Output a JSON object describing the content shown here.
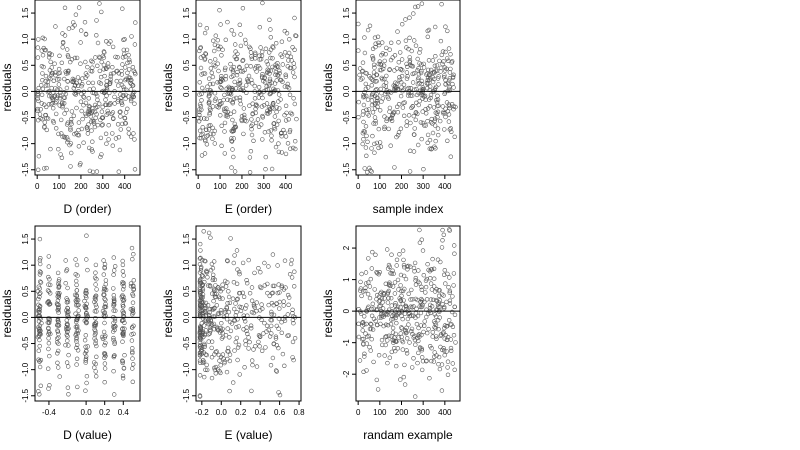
{
  "chart_data": [
    {
      "type": "scatter",
      "xlabel": "D (order)",
      "ylabel": "residuals",
      "xlim": [
        -10,
        470
      ],
      "ylim": [
        -1.6,
        1.75
      ],
      "x_ticks": [
        0,
        100,
        200,
        300,
        400
      ],
      "x_tick_labels": [
        "0",
        "100",
        "200",
        "300",
        "400"
      ],
      "y_ticks": [
        -1.5,
        -1.0,
        -0.5,
        0.0,
        0.5,
        1.0,
        1.5
      ],
      "y_tick_labels": [
        "-1.5",
        "-1.0",
        "-0.5",
        "0.0",
        "0.5",
        "1.0",
        "1.5"
      ],
      "reference_line_y": 0,
      "point_count": 450,
      "x_distribution": "uniform",
      "x_range": [
        0,
        450
      ]
    },
    {
      "type": "scatter",
      "xlabel": "E (order)",
      "ylabel": "residuals",
      "xlim": [
        -10,
        470
      ],
      "ylim": [
        -1.6,
        1.75
      ],
      "x_ticks": [
        0,
        100,
        200,
        300,
        400
      ],
      "x_tick_labels": [
        "0",
        "100",
        "200",
        "300",
        "400"
      ],
      "y_ticks": [
        -1.5,
        -1.0,
        -0.5,
        0.0,
        0.5,
        1.0,
        1.5
      ],
      "y_tick_labels": [
        "-1.5",
        "-1.0",
        "-0.5",
        "0.0",
        "0.5",
        "1.0",
        "1.5"
      ],
      "reference_line_y": 0,
      "point_count": 450,
      "x_distribution": "uniform",
      "x_range": [
        0,
        450
      ]
    },
    {
      "type": "scatter",
      "xlabel": "sample index",
      "ylabel": "residuals",
      "xlim": [
        -10,
        470
      ],
      "ylim": [
        -1.6,
        1.75
      ],
      "x_ticks": [
        0,
        100,
        200,
        300,
        400
      ],
      "x_tick_labels": [
        "0",
        "100",
        "200",
        "300",
        "400"
      ],
      "y_ticks": [
        -1.5,
        -1.0,
        -0.5,
        0.0,
        0.5,
        1.0,
        1.5
      ],
      "y_tick_labels": [
        "-1.5",
        "-1.0",
        "-0.5",
        "0.0",
        "0.5",
        "1.0",
        "1.5"
      ],
      "reference_line_y": 0,
      "point_count": 450,
      "x_distribution": "uniform",
      "x_range": [
        0,
        450
      ]
    },
    {
      "type": "scatter",
      "xlabel": "D (value)",
      "ylabel": "residuals",
      "xlim": [
        -0.55,
        0.58
      ],
      "ylim": [
        -1.6,
        1.75
      ],
      "x_ticks": [
        -0.4,
        0.0,
        0.2,
        0.4
      ],
      "x_tick_labels": [
        "-0.4",
        "0.0",
        "0.2",
        "0.4"
      ],
      "y_ticks": [
        -1.5,
        -1.0,
        -0.5,
        0.0,
        0.5,
        1.0,
        1.5
      ],
      "y_tick_labels": [
        "-1.5",
        "-1.0",
        "-0.5",
        "0.0",
        "0.5",
        "1.0",
        "1.5"
      ],
      "reference_line_y": 0,
      "point_count": 450,
      "x_distribution": "clustered",
      "x_clusters": [
        -0.5,
        -0.4,
        -0.3,
        -0.2,
        -0.1,
        0.0,
        0.1,
        0.2,
        0.3,
        0.4,
        0.5
      ]
    },
    {
      "type": "scatter",
      "xlabel": "E (value)",
      "ylabel": "residuals",
      "xlim": [
        -0.26,
        0.82
      ],
      "ylim": [
        -1.6,
        1.75
      ],
      "x_ticks": [
        -0.2,
        0.0,
        0.2,
        0.4,
        0.6,
        0.8
      ],
      "x_tick_labels": [
        "-0.2",
        "0.0",
        "0.2",
        "0.4",
        "0.6",
        "0.8"
      ],
      "y_ticks": [
        -1.5,
        -1.0,
        -0.5,
        0.0,
        0.5,
        1.0,
        1.5
      ],
      "y_tick_labels": [
        "-1.5",
        "-1.0",
        "-0.5",
        "0.0",
        "0.5",
        "1.0",
        "1.5"
      ],
      "reference_line_y": 0,
      "point_count": 450,
      "x_distribution": "right-skewed",
      "x_range": [
        -0.22,
        0.78
      ]
    },
    {
      "type": "scatter",
      "xlabel": "randam example",
      "ylabel": "residuals",
      "xlim": [
        -10,
        470
      ],
      "ylim": [
        -2.85,
        2.7
      ],
      "x_ticks": [
        0,
        100,
        200,
        300,
        400
      ],
      "x_tick_labels": [
        "0",
        "100",
        "200",
        "300",
        "400"
      ],
      "y_ticks": [
        -2,
        -1,
        0,
        1,
        2
      ],
      "y_tick_labels": [
        "-2",
        "-1",
        "0",
        "1",
        "2"
      ],
      "reference_line_y": 0,
      "point_count": 450,
      "x_distribution": "uniform",
      "x_range": [
        0,
        450
      ]
    }
  ],
  "colors": {
    "points": "#555555",
    "axis": "#000000",
    "background": "#ffffff"
  }
}
